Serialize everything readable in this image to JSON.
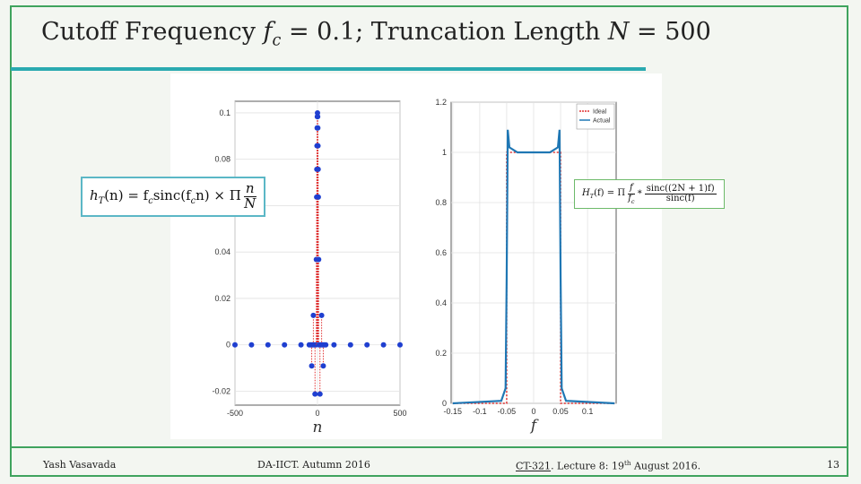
{
  "slide": {
    "title": [
      "Cutoff Frequency ",
      "f",
      "c",
      " = 0.1; Truncation Length ",
      "N",
      " = 500"
    ],
    "eq1": [
      "h",
      "T",
      "(n) = f",
      "c",
      "sinc(f",
      "c",
      "n) × Π",
      "n",
      "N"
    ],
    "eq2": [
      "H",
      "T",
      "(f) = Π",
      "f",
      "f",
      "c",
      "*",
      "sinc((2N + 1)f)",
      "sinc(f)"
    ],
    "footer": {
      "author": "Yash Vasavada",
      "institute": "DA-IICT.  Autumn 2016",
      "course": "CT-321",
      "lecture": ".  Lecture 8:  19",
      "sup": "th",
      "date": " August 2016.",
      "page": "13"
    }
  },
  "chart_data": [
    {
      "type": "stem",
      "xlabel": "n",
      "color": "#1f3fd0",
      "stem_color": "#e03030",
      "x": [
        -500,
        -400,
        -300,
        -200,
        -100,
        -50,
        -40,
        -35,
        -30,
        -25,
        -20,
        -15,
        -10,
        -7,
        -5,
        -4,
        -3,
        -2,
        -1,
        0,
        1,
        2,
        3,
        4,
        5,
        7,
        10,
        15,
        20,
        25,
        30,
        35,
        40,
        50,
        100,
        200,
        300,
        400,
        500
      ],
      "values": [
        0,
        0,
        0,
        0,
        0,
        0,
        0,
        -0.0091,
        0,
        0.0127,
        0,
        -0.0212,
        0,
        0.0368,
        0.0637,
        0.0757,
        0.0858,
        0.0935,
        0.0984,
        0.1,
        0.0984,
        0.0935,
        0.0858,
        0.0757,
        0.0637,
        0.0368,
        0,
        -0.0212,
        0,
        0.0127,
        0,
        -0.0091,
        0,
        0,
        0,
        0,
        0,
        0,
        0
      ],
      "xlim": [
        -500,
        500
      ],
      "ylim": [
        -0.026,
        0.105
      ],
      "xticks": [
        -500,
        0,
        500
      ],
      "yticks": [
        -0.02,
        0,
        0.02,
        0.04,
        0.06,
        0.08,
        0.1
      ],
      "grid": true
    },
    {
      "type": "line",
      "xlabel": "f",
      "legend": "upper right",
      "xlim": [
        -0.153,
        0.153
      ],
      "ylim": [
        0,
        1.2
      ],
      "xticks": [
        -0.15,
        -0.1,
        -0.05,
        0,
        0.05,
        0.1
      ],
      "yticks": [
        0,
        0.2,
        0.4,
        0.6,
        0.8,
        1,
        1.2
      ],
      "grid": true,
      "series": [
        {
          "name": "Ideal",
          "color": "#e03030",
          "style": "dotted",
          "x": [
            -0.15,
            -0.05,
            -0.05,
            0.05,
            0.05,
            0.15
          ],
          "values": [
            0,
            0,
            1,
            1,
            0,
            0
          ]
        },
        {
          "name": "Actual",
          "color": "#1f77b4",
          "style": "solid",
          "x": [
            -0.15,
            -0.06,
            -0.052,
            -0.05,
            -0.048,
            -0.045,
            -0.03,
            0,
            0.03,
            0.045,
            0.048,
            0.05,
            0.052,
            0.06,
            0.15
          ],
          "values": [
            0,
            0.01,
            0.06,
            0.5,
            1.09,
            1.02,
            1.0,
            1.0,
            1.0,
            1.02,
            1.09,
            0.5,
            0.06,
            0.01,
            0
          ]
        }
      ]
    }
  ]
}
